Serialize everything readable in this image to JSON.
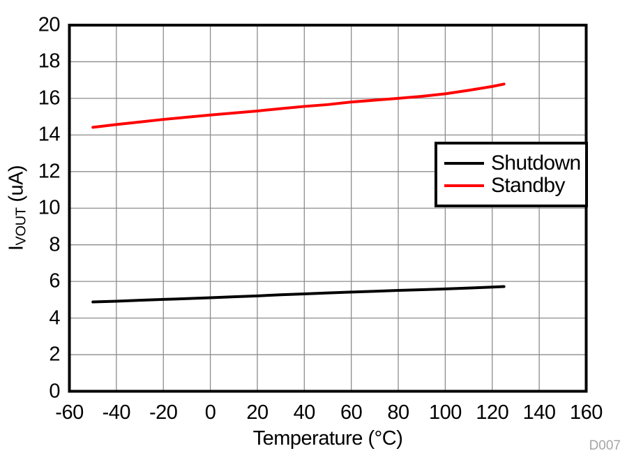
{
  "annotation": "D007",
  "axes": {
    "x_title": "Temperature (°C)",
    "y_title_main": "I",
    "y_title_sub": "VOUT",
    "y_title_unit": " (uA)"
  },
  "chart_data": {
    "type": "line",
    "title": "",
    "xlabel": "Temperature (°C)",
    "ylabel": "IVOUT (uA)",
    "xlim": [
      -60,
      160
    ],
    "ylim": [
      0,
      20
    ],
    "xticks": [
      -60,
      -40,
      -20,
      0,
      20,
      40,
      60,
      80,
      100,
      120,
      140,
      160
    ],
    "yticks": [
      0,
      2,
      4,
      6,
      8,
      10,
      12,
      14,
      16,
      18,
      20
    ],
    "grid": true,
    "grid_color": "#8c8c8c",
    "legend_position": "right-middle",
    "x": [
      -50,
      -40,
      -30,
      -20,
      -10,
      0,
      10,
      20,
      30,
      40,
      50,
      60,
      70,
      80,
      90,
      100,
      110,
      120,
      125
    ],
    "series": [
      {
        "name": "Shutdown",
        "color": "#000000",
        "values": [
          4.88,
          4.92,
          4.97,
          5.02,
          5.06,
          5.11,
          5.16,
          5.21,
          5.27,
          5.32,
          5.37,
          5.42,
          5.46,
          5.51,
          5.55,
          5.59,
          5.64,
          5.69,
          5.72
        ]
      },
      {
        "name": "Standby",
        "color": "#ff0000",
        "values": [
          14.42,
          14.57,
          14.71,
          14.85,
          14.97,
          15.09,
          15.2,
          15.31,
          15.44,
          15.56,
          15.66,
          15.8,
          15.9,
          16.0,
          16.11,
          16.25,
          16.44,
          16.65,
          16.78
        ]
      }
    ]
  }
}
